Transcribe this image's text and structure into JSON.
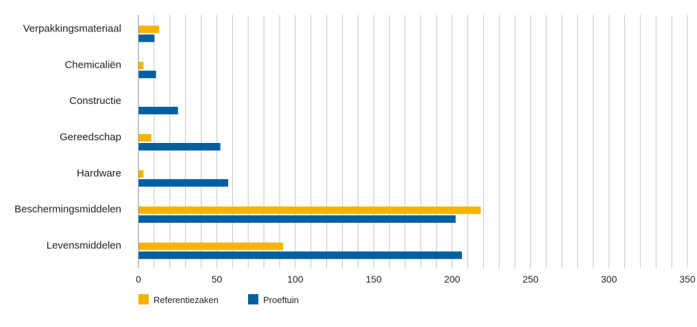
{
  "chart_data": {
    "type": "bar",
    "orientation": "horizontal",
    "categories": [
      "Verpakkingsmateriaal",
      "Chemicaliën",
      "Constructie",
      "Gereedschap",
      "Hardware",
      "Beschermingsmiddelen",
      "Levensmiddelen"
    ],
    "series": [
      {
        "name": "Referentiezaken",
        "values": [
          13,
          3,
          0,
          8,
          3,
          218,
          92
        ],
        "color": "#f5b400"
      },
      {
        "name": "Proeftuin",
        "values": [
          10,
          11,
          25,
          52,
          57,
          202,
          206
        ],
        "color": "#00609f"
      }
    ],
    "xlim": [
      0,
      350
    ],
    "x_ticks": [
      0,
      50,
      100,
      150,
      200,
      250,
      300,
      350
    ],
    "x_tick_labels": [
      "0",
      "50",
      "100",
      "150",
      "200",
      "250",
      "300",
      "350"
    ],
    "grid": "vertical",
    "grid_step": 10,
    "legend_position": "bottom-left",
    "grid_color": "#b7c7d0"
  }
}
